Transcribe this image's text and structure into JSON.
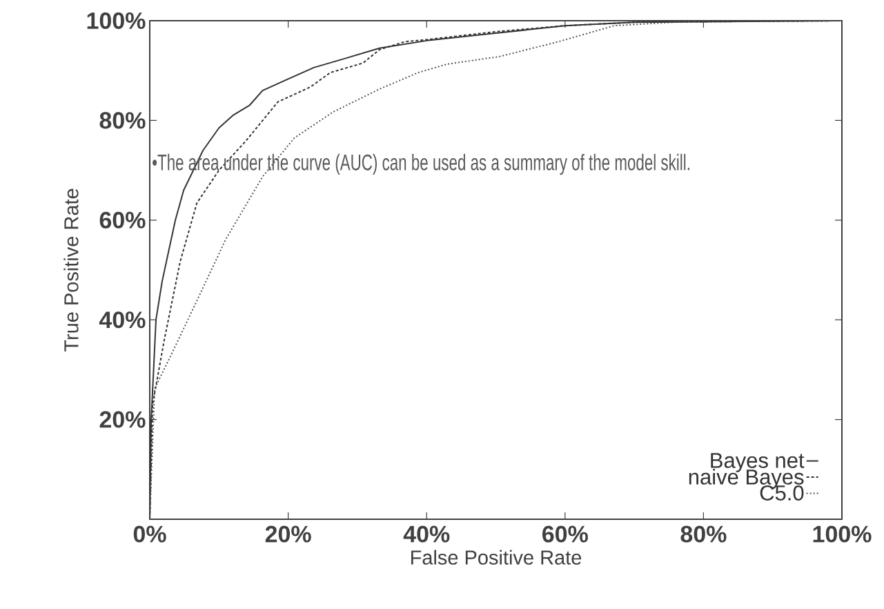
{
  "chart_data": {
    "type": "line",
    "xlabel": "False Positive Rate",
    "ylabel": "True Positive Rate",
    "xlim": [
      0,
      100
    ],
    "ylim": [
      0,
      100
    ],
    "xticks": [
      {
        "value": 0,
        "label": "0%"
      },
      {
        "value": 20,
        "label": "20%"
      },
      {
        "value": 40,
        "label": "40%"
      },
      {
        "value": 60,
        "label": "60%"
      },
      {
        "value": 80,
        "label": "80%"
      },
      {
        "value": 100,
        "label": "100%"
      }
    ],
    "yticks": [
      {
        "value": 20,
        "label": "20%"
      },
      {
        "value": 40,
        "label": "40%"
      },
      {
        "value": 60,
        "label": "60%"
      },
      {
        "value": 80,
        "label": "80%"
      },
      {
        "value": 100,
        "label": "100%"
      }
    ],
    "grid": false,
    "legend": "bottom right",
    "annotations": [
      "•The area under the curve (AUC) can be used as a summary of the model skill."
    ],
    "series": [
      {
        "name": "Bayes net",
        "color": "#333333",
        "line_style": "solid",
        "x": [
          0,
          0.2,
          0.9,
          1.8,
          3.7,
          4.9,
          7.7,
          10,
          12,
          14.4,
          16.3,
          19.5,
          23.7,
          28.4,
          33.2,
          40,
          50,
          60,
          70,
          100
        ],
        "values": [
          0,
          19.7,
          40,
          47.8,
          60,
          66,
          74,
          78.5,
          81,
          83,
          86,
          88,
          90.6,
          92.5,
          94.5,
          96,
          97.5,
          99,
          99.7,
          100
        ]
      },
      {
        "name": "naive Bayes",
        "color": "#333333",
        "line_style": "dashed",
        "x": [
          0,
          0.4,
          2.1,
          4.4,
          6.8,
          10,
          13.9,
          18.5,
          23.2,
          26.1,
          30.8,
          33.2,
          36.9,
          40,
          50,
          60,
          70,
          100
        ],
        "values": [
          0,
          22.9,
          36,
          51.7,
          63.4,
          70,
          75.9,
          83.7,
          86.7,
          89.6,
          91.5,
          94.2,
          95.8,
          96.2,
          97.8,
          99,
          99.7,
          100
        ]
      },
      {
        "name": "C5.0",
        "color": "#555555",
        "line_style": "dotted",
        "x": [
          0,
          0.7,
          3,
          6.8,
          11,
          16.3,
          20.9,
          26.5,
          33.2,
          38.8,
          43,
          50.5,
          58.8,
          67.1,
          79.6,
          100
        ],
        "values": [
          0,
          26.2,
          32.7,
          43.8,
          56.2,
          68.7,
          76.5,
          81.7,
          86.3,
          89.6,
          91.3,
          92.8,
          95.7,
          99,
          100,
          100
        ]
      }
    ]
  }
}
